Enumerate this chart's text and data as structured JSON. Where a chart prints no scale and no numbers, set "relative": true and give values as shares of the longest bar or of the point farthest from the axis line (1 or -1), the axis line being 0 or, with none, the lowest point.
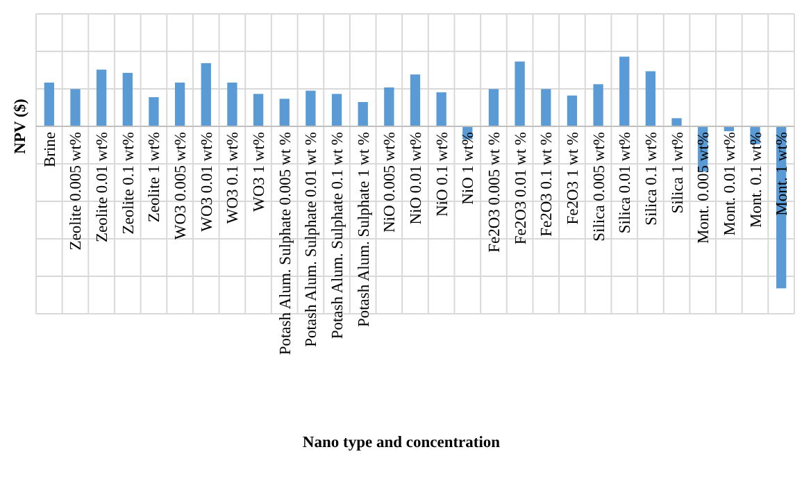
{
  "chart_data": {
    "type": "bar",
    "relative": true,
    "xlabel": "Nano type and concentration",
    "ylabel": "NPV ($)",
    "grid": true,
    "color": "#5b9bd5",
    "categories": [
      "Brine",
      "Zeolite 0.005 wt%",
      "Zeolite 0.01 wt%",
      "Zeolite 0.1 wt%",
      "Zeolite 1 wt%",
      "WO3 0.005 wt%",
      "WO3 0.01 wt%",
      "WO3 0.1 wt%",
      "WO3 1 wt%",
      "Potash Alum. Sulphate 0.005 wt %",
      "Potash Alum. Sulphate 0.01 wt %",
      "Potash Alum. Sulphate 0.1 wt %",
      "Potash Alum. Sulphate 1 wt %",
      "NiO 0.005 wt%",
      "NiO 0.01 wt%",
      "NiO 0.1 wt%",
      "NiO 1 wt%",
      "Fe2O3 0.005 wt %",
      "Fe2O3 0.01 wt %",
      "Fe2O3 0.1 wt %",
      "Fe2O3 1 wt %",
      "Silica 0.005 wt%",
      "Silica 0.01 wt%",
      "Silica 0.1 wt%",
      "Silica 1 wt%",
      "Mont. 0.005 wt%",
      "Mont. 0.01 wt%",
      "Mont. 0.1 wt%",
      "Mont. 1 wt%"
    ],
    "values": [
      0.27,
      0.23,
      0.35,
      0.33,
      0.18,
      0.27,
      0.39,
      0.27,
      0.2,
      0.17,
      0.22,
      0.2,
      0.15,
      0.24,
      0.32,
      0.21,
      -0.08,
      0.23,
      0.4,
      0.23,
      0.19,
      0.26,
      0.43,
      0.34,
      0.05,
      -0.28,
      -0.03,
      -0.11,
      -1
    ]
  }
}
